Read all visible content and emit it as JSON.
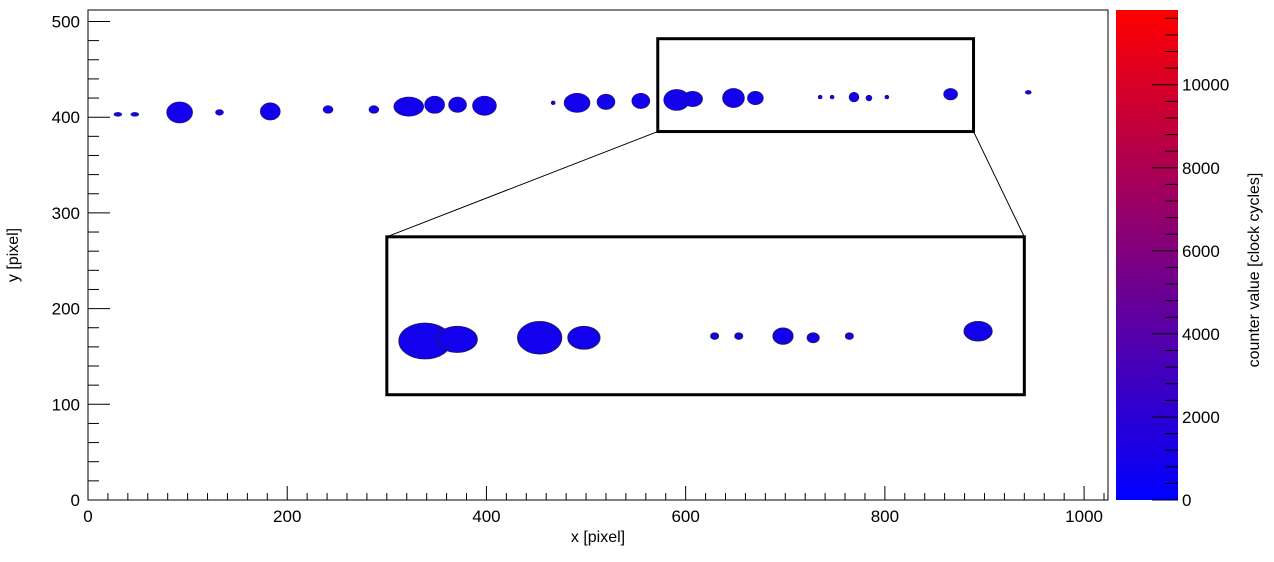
{
  "chart_data": {
    "type": "heatmap",
    "xlabel": "x [pixel]",
    "ylabel": "y [pixel]",
    "zlabel": "counter value [clock cycles]",
    "xlim": [
      0,
      1024
    ],
    "ylim": [
      0,
      512
    ],
    "zlim": [
      0,
      11800
    ],
    "x_ticks": [
      0,
      200,
      400,
      600,
      800,
      1000
    ],
    "y_ticks": [
      0,
      100,
      200,
      300,
      400,
      500
    ],
    "z_ticks": [
      0,
      2000,
      4000,
      6000,
      8000,
      10000
    ],
    "colorscale": [
      "#0000ff",
      "#ff0000"
    ],
    "clusters": [
      {
        "x": 92,
        "y": 405,
        "rx": 13,
        "ry": 11,
        "value": 900
      },
      {
        "x": 132,
        "y": 405,
        "rx": 4,
        "ry": 3,
        "value": 900
      },
      {
        "x": 183,
        "y": 406,
        "rx": 10,
        "ry": 9,
        "value": 900
      },
      {
        "x": 241,
        "y": 408,
        "rx": 5,
        "ry": 4,
        "value": 900
      },
      {
        "x": 287,
        "y": 408,
        "rx": 5,
        "ry": 4,
        "value": 900
      },
      {
        "x": 322,
        "y": 411,
        "rx": 15,
        "ry": 10,
        "value": 900
      },
      {
        "x": 348,
        "y": 413,
        "rx": 10,
        "ry": 9,
        "value": 900
      },
      {
        "x": 371,
        "y": 413,
        "rx": 9,
        "ry": 8,
        "value": 900
      },
      {
        "x": 398,
        "y": 412,
        "rx": 12,
        "ry": 10,
        "value": 900
      },
      {
        "x": 491,
        "y": 415,
        "rx": 13,
        "ry": 10,
        "value": 900
      },
      {
        "x": 520,
        "y": 416,
        "rx": 9,
        "ry": 8,
        "value": 900
      },
      {
        "x": 555,
        "y": 417,
        "rx": 9,
        "ry": 8,
        "value": 900
      },
      {
        "x": 591,
        "y": 418,
        "rx": 13,
        "ry": 11,
        "value": 900
      },
      {
        "x": 607,
        "y": 419,
        "rx": 10,
        "ry": 8,
        "value": 900
      },
      {
        "x": 648,
        "y": 420,
        "rx": 11,
        "ry": 10,
        "value": 900
      },
      {
        "x": 670,
        "y": 420,
        "rx": 8,
        "ry": 7,
        "value": 900
      },
      {
        "x": 769,
        "y": 421,
        "rx": 5,
        "ry": 5,
        "value": 900
      },
      {
        "x": 784,
        "y": 420,
        "rx": 3,
        "ry": 3,
        "value": 900
      },
      {
        "x": 866,
        "y": 424,
        "rx": 7,
        "ry": 6,
        "value": 900
      },
      {
        "x": 30,
        "y": 403,
        "rx": 4,
        "ry": 2,
        "value": 900
      },
      {
        "x": 47,
        "y": 403,
        "rx": 4,
        "ry": 2,
        "value": 900
      },
      {
        "x": 467,
        "y": 415,
        "rx": 2,
        "ry": 2,
        "value": 900
      },
      {
        "x": 735,
        "y": 421,
        "rx": 2,
        "ry": 2,
        "value": 900
      },
      {
        "x": 747,
        "y": 421,
        "rx": 2,
        "ry": 2,
        "value": 900
      },
      {
        "x": 802,
        "y": 421,
        "rx": 2,
        "ry": 2,
        "value": 900
      },
      {
        "x": 944,
        "y": 426,
        "rx": 3,
        "ry": 2,
        "value": 900
      }
    ],
    "zoom_region": {
      "x": [
        572,
        889
      ],
      "y": [
        385,
        482
      ]
    },
    "zoom_inset": {
      "x": [
        300,
        940
      ],
      "y": [
        110,
        275
      ]
    }
  }
}
